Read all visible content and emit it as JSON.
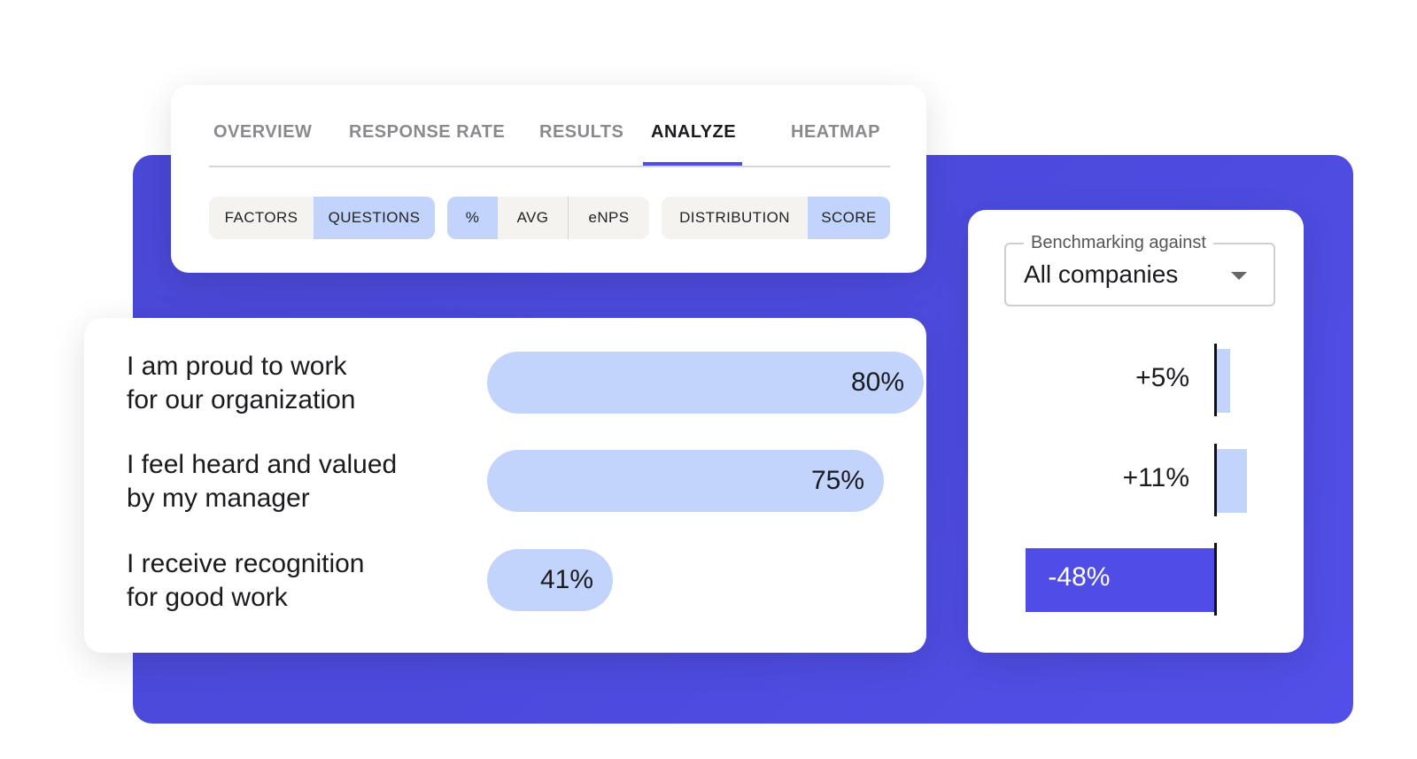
{
  "tabs": [
    {
      "label": "OVERVIEW",
      "active": false
    },
    {
      "label": "RESPONSE RATE",
      "active": false
    },
    {
      "label": "RESULTS",
      "active": false
    },
    {
      "label": "ANALYZE",
      "active": true
    },
    {
      "label": "HEATMAP",
      "active": false
    }
  ],
  "toggles": {
    "view": {
      "options": [
        "FACTORS",
        "QUESTIONS"
      ],
      "selected": "QUESTIONS"
    },
    "metric": {
      "options": [
        "%",
        "AVG",
        "eNPS"
      ],
      "selected": "%"
    },
    "mode": {
      "options": [
        "DISTRIBUTION",
        "SCORE"
      ],
      "selected": "SCORE"
    }
  },
  "questions": [
    {
      "label": "I am proud to work\nfor our organization",
      "value": 80,
      "display": "80%"
    },
    {
      "label": "I feel heard and valued\nby my manager",
      "value": 75,
      "display": "75%"
    },
    {
      "label": "I receive recognition\nfor good work",
      "value": 41,
      "display": "41%"
    }
  ],
  "benchmark": {
    "legend": "Benchmarking against",
    "selected": "All companies",
    "deltas": [
      {
        "value": 5,
        "display": "+5%"
      },
      {
        "value": 11,
        "display": "+11%"
      },
      {
        "value": -48,
        "display": "-48%"
      }
    ]
  },
  "colors": {
    "accent": "#4f4de6",
    "bar_light": "#c2d3fc",
    "toggle_bg": "#f4f3ef"
  }
}
